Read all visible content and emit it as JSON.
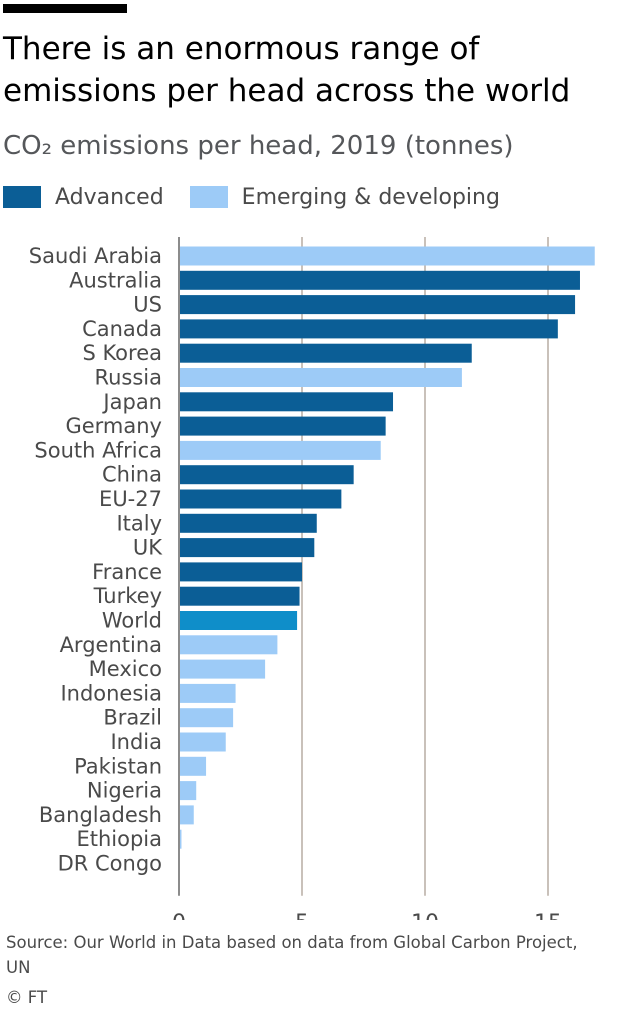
{
  "title": "There is an enormous range of emissions per head across the world",
  "subtitle": "CO₂ emissions per head, 2019 (tonnes)",
  "legend": {
    "advanced": "Advanced",
    "emerging": "Emerging & developing"
  },
  "colors": {
    "advanced": "#0b5e96",
    "emerging": "#9dcbf7",
    "world": "#0f8ec9",
    "grid": "#c9c1ba"
  },
  "source": "Source: Our World in Data based on data from Global Carbon Project, UN",
  "credit": "© FT",
  "chart_data": {
    "type": "bar",
    "orientation": "horizontal",
    "xlim": [
      0,
      17
    ],
    "x_ticks": [
      0,
      5,
      10,
      15
    ],
    "grid": true,
    "legend_placement": "top",
    "categories": [
      "Saudi Arabia",
      "Australia",
      "US",
      "Canada",
      "S Korea",
      "Russia",
      "Japan",
      "Germany",
      "South Africa",
      "China",
      "EU-27",
      "Italy",
      "UK",
      "France",
      "Turkey",
      "World",
      "Argentina",
      "Mexico",
      "Indonesia",
      "Brazil",
      "India",
      "Pakistan",
      "Nigeria",
      "Bangladesh",
      "Ethiopia",
      "DR Congo"
    ],
    "values": [
      16.9,
      16.3,
      16.1,
      15.4,
      11.9,
      11.5,
      8.7,
      8.4,
      8.2,
      7.1,
      6.6,
      5.6,
      5.5,
      5.0,
      4.9,
      4.8,
      4.0,
      3.5,
      2.3,
      2.2,
      1.9,
      1.1,
      0.7,
      0.6,
      0.1,
      0.03
    ],
    "groups": [
      "emerging",
      "advanced",
      "advanced",
      "advanced",
      "advanced",
      "emerging",
      "advanced",
      "advanced",
      "emerging",
      "advanced",
      "advanced",
      "advanced",
      "advanced",
      "advanced",
      "advanced",
      "world",
      "emerging",
      "emerging",
      "emerging",
      "emerging",
      "emerging",
      "emerging",
      "emerging",
      "emerging",
      "emerging",
      "emerging"
    ]
  }
}
